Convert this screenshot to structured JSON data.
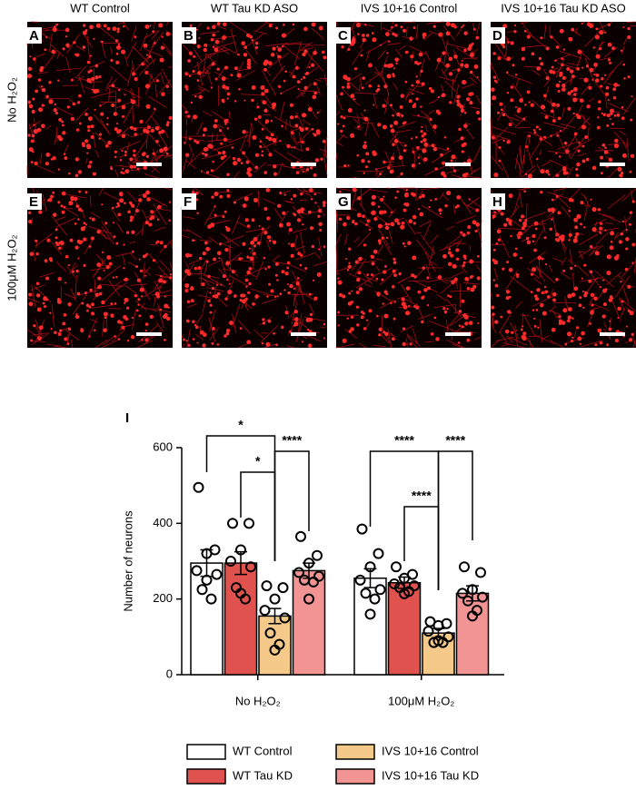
{
  "figure": {
    "columns": [
      "WT Control",
      "WT Tau KD ASO",
      "IVS 10+16 Control",
      "IVS 10+16 Tau KD ASO"
    ],
    "rows": [
      "No H₂O₂",
      "100μM H₂O₂"
    ],
    "letters": [
      "A",
      "B",
      "C",
      "D",
      "E",
      "F",
      "G",
      "H"
    ],
    "chart_letter": "I"
  },
  "chart_data": {
    "type": "bar",
    "ylabel": "Number of neurons",
    "categories": [
      "No H₂O₂",
      "100μM H₂O₂"
    ],
    "ylim": [
      0,
      600
    ],
    "yticks": [
      0,
      200,
      400,
      600
    ],
    "series": [
      {
        "name": "WT Control",
        "color": "#ffffff",
        "values": [
          295,
          255
        ],
        "errors": [
          35,
          25
        ],
        "points": [
          [
            495,
            330,
            320,
            275,
            265,
            225,
            200,
            250
          ],
          [
            385,
            320,
            285,
            250,
            225,
            215,
            200,
            160
          ]
        ]
      },
      {
        "name": "WT Tau KD",
        "color": "#e0524e",
        "values": [
          295,
          243
        ],
        "errors": [
          30,
          15
        ],
        "points": [
          [
            400,
            400,
            330,
            300,
            285,
            230,
            200,
            215
          ],
          [
            285,
            265,
            255,
            240,
            235,
            230,
            220,
            214
          ]
        ]
      },
      {
        "name": "IVS 10+16 Control",
        "color": "#f5c98a",
        "values": [
          155,
          110
        ],
        "errors": [
          20,
          12
        ],
        "points": [
          [
            235,
            230,
            200,
            170,
            150,
            110,
            80,
            65
          ],
          [
            140,
            135,
            130,
            115,
            100,
            85,
            85,
            90
          ]
        ]
      },
      {
        "name": "IVS 10+16 Tau KD",
        "color": "#f29494",
        "values": [
          275,
          215
        ],
        "errors": [
          20,
          20
        ],
        "points": [
          [
            365,
            315,
            295,
            270,
            260,
            250,
            245,
            200
          ],
          [
            285,
            270,
            225,
            215,
            205,
            195,
            170,
            155
          ]
        ]
      }
    ],
    "annotations": [
      "*",
      "*",
      "****",
      "****",
      "****",
      "****"
    ]
  }
}
